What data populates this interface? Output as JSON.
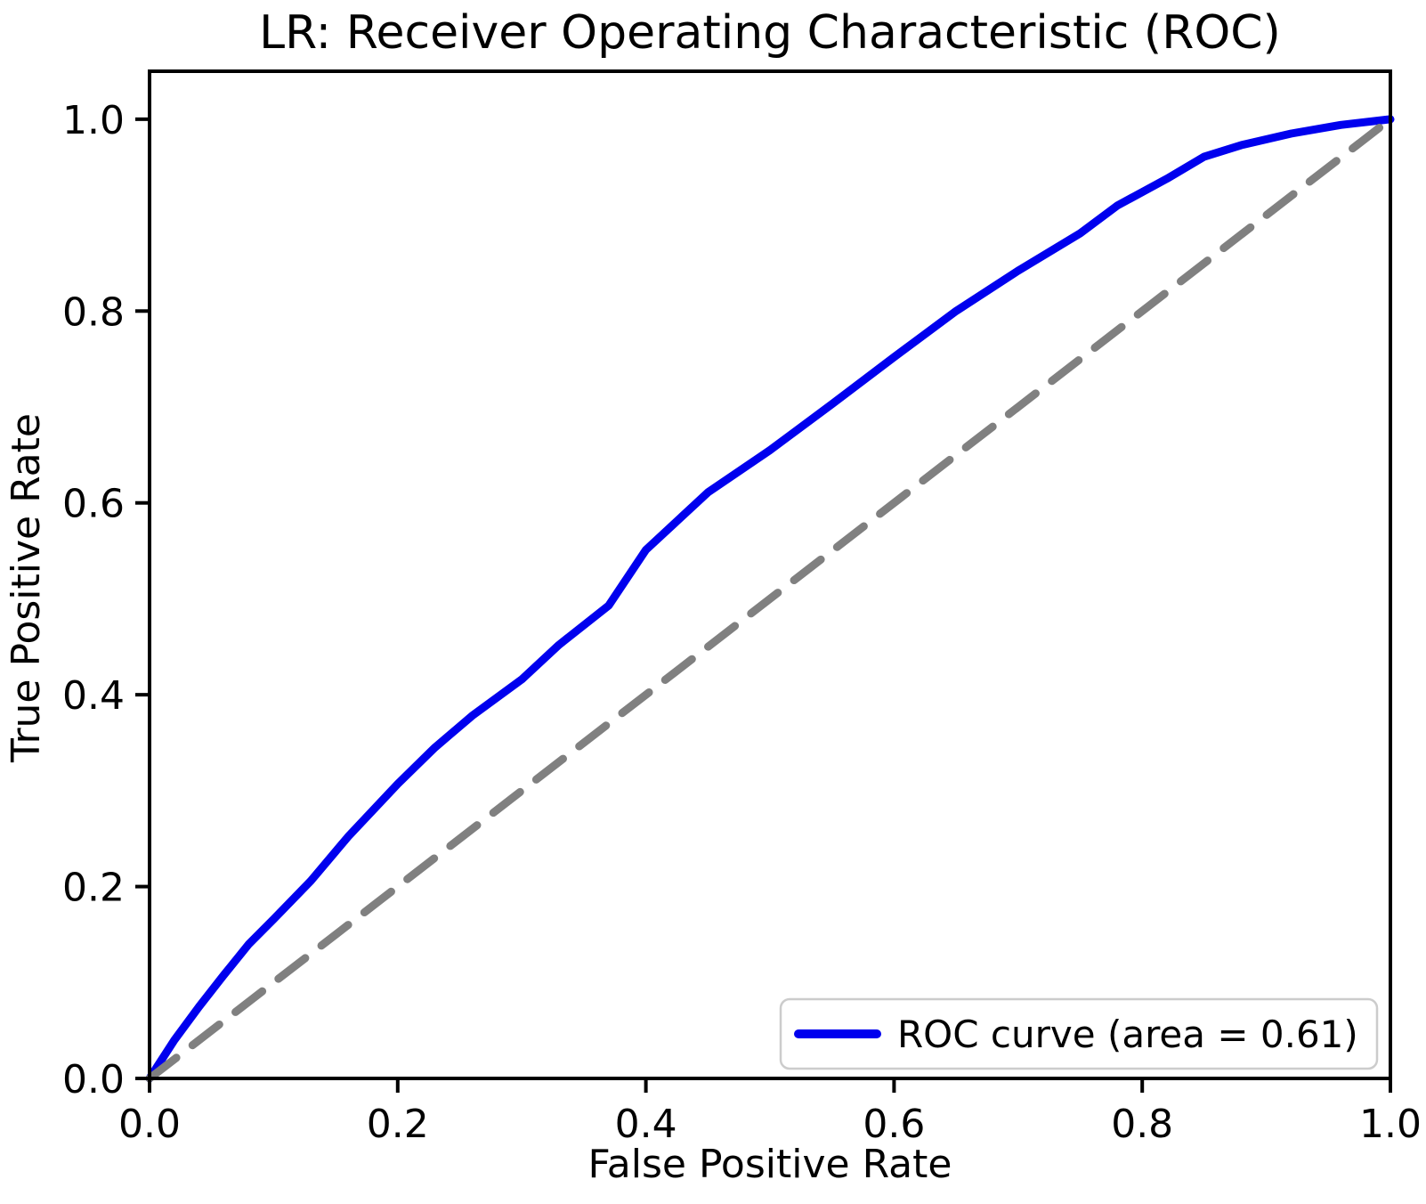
{
  "chart_data": {
    "type": "line",
    "title": "LR: Receiver Operating Characteristic (ROC)",
    "xlabel": "False Positive Rate",
    "ylabel": "True Positive Rate",
    "xlim": [
      0.0,
      1.0
    ],
    "ylim": [
      0.0,
      1.05
    ],
    "grid": false,
    "x_tick_values": [
      0.0,
      0.2,
      0.4,
      0.6,
      0.8,
      1.0
    ],
    "x_tick_labels": [
      "0.0",
      "0.2",
      "0.4",
      "0.6",
      "0.8",
      "1.0"
    ],
    "y_tick_values": [
      0.0,
      0.2,
      0.4,
      0.6,
      0.8,
      1.0
    ],
    "y_tick_labels": [
      "0.0",
      "0.2",
      "0.4",
      "0.6",
      "0.8",
      "1.0"
    ],
    "auc": 0.61,
    "series": [
      {
        "name": "ROC curve",
        "color": "#0000ee",
        "style": "solid",
        "line_width": 9,
        "x": [
          0,
          0.02,
          0.04,
          0.06,
          0.08,
          0.1,
          0.13,
          0.16,
          0.2,
          0.23,
          0.26,
          0.3,
          0.33,
          0.37,
          0.4,
          0.45,
          0.5,
          0.55,
          0.6,
          0.65,
          0.7,
          0.75,
          0.78,
          0.82,
          0.85,
          0.88,
          0.92,
          0.96,
          1.0
        ],
        "y": [
          0,
          0.04,
          0.075,
          0.108,
          0.14,
          0.166,
          0.206,
          0.252,
          0.307,
          0.345,
          0.378,
          0.416,
          0.452,
          0.493,
          0.551,
          0.611,
          0.655,
          0.703,
          0.752,
          0.8,
          0.842,
          0.881,
          0.91,
          0.938,
          0.961,
          0.973,
          0.985,
          0.994,
          1.0
        ]
      },
      {
        "name": "chance diagonal",
        "color": "#808080",
        "style": "dashed",
        "line_width": 9,
        "x": [
          0,
          1
        ],
        "y": [
          0,
          1
        ]
      }
    ],
    "legend": {
      "position": "lower right",
      "entries": [
        {
          "label": "ROC curve (area = 0.61)",
          "color": "#0000ee"
        }
      ]
    },
    "colors": {
      "frame": "#000000",
      "background": "#ffffff",
      "legend_border": "#cccccc",
      "legend_background": "#ffffff"
    }
  }
}
